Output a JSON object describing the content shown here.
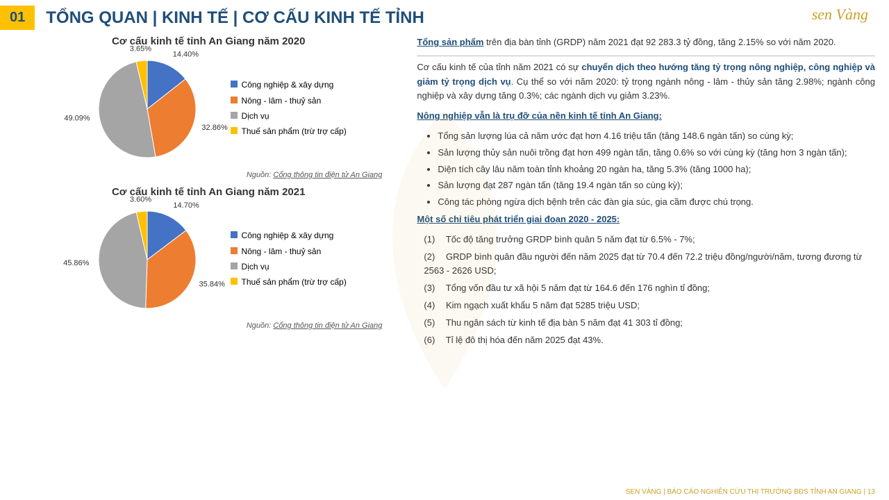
{
  "header": {
    "number": "01",
    "title": "TỔNG QUAN | KINH TẾ | CƠ CẤU KINH TẾ TỈNH",
    "logo": "sen Vàng"
  },
  "chart2020": {
    "title": "Cơ cấu kinh tế tỉnh An Giang năm 2020",
    "type": "pie",
    "slices": [
      {
        "label": "Công nghiệp & xây dựng",
        "value": 14.4,
        "color": "#4472c4",
        "display": "14.40%"
      },
      {
        "label": "Nông - lâm - thuỷ sản",
        "value": 32.86,
        "color": "#ed7d31",
        "display": "32.86%"
      },
      {
        "label": "Dịch vụ",
        "value": 49.09,
        "color": "#a5a5a5",
        "display": "49.09%"
      },
      {
        "label": "Thuế sản phẩm (trừ trợ cấp)",
        "value": 3.65,
        "color": "#ffc000",
        "display": "3.65%"
      }
    ],
    "source_prefix": "Nguồn: ",
    "source_link": "Cổng thông tin điện tử An Giang"
  },
  "chart2021": {
    "title": "Cơ cấu kinh tế tỉnh An Giang năm 2021",
    "type": "pie",
    "slices": [
      {
        "label": "Công nghiệp & xây dựng",
        "value": 14.7,
        "color": "#4472c4",
        "display": "14.70%"
      },
      {
        "label": "Nông - lâm - thuỷ sản",
        "value": 35.84,
        "color": "#ed7d31",
        "display": "35.84%"
      },
      {
        "label": "Dịch vụ",
        "value": 45.86,
        "color": "#a5a5a5",
        "display": "45.86%"
      },
      {
        "label": "Thuế sản phẩm (trừ trợ cấp)",
        "value": 3.6,
        "color": "#ffc000",
        "display": "3.60%"
      }
    ],
    "source_prefix": "Nguồn: ",
    "source_link": "Cổng thông tin điện tử An Giang"
  },
  "text": {
    "p1_lead": "Tổng sản phẩm",
    "p1_rest": " trên địa bàn tỉnh (GRDP) năm 2021 đạt 92 283.3 tỷ đồng, tăng 2.15% so với năm 2020.",
    "p2_pre": "Cơ cấu kinh tế của tỉnh năm 2021 có sự ",
    "p2_bold": "chuyển dịch theo hướng tăng tỷ trọng nông nghiệp, công nghiệp và giảm tỷ trọng dịch vụ",
    "p2_post": ". Cụ thể so với năm 2020: tỷ trọng ngành nông - lâm - thủy sản tăng 2.98%; ngành công nghiệp và xây dựng tăng 0.3%; các ngành dịch vụ giảm 3.23%.",
    "h1": "Nông nghiệp vẫn là trụ đỡ của nền kinh tế tỉnh An Giang:",
    "bullets": [
      "Tổng sản lượng lúa cả năm ước đạt hơn 4.16 triệu tấn (tăng 148.6 ngàn tấn) so cùng kỳ;",
      "Sản lượng thủy sản nuôi trồng đạt hơn 499 ngàn tấn, tăng 0.6% so với cùng kỳ (tăng hơn 3 ngàn tấn);",
      "Diện tích cây lâu năm toàn tỉnh khoảng 20 ngàn ha, tăng 5.3% (tăng 1000 ha);",
      "Sản lượng đạt 287 ngàn tấn (tăng 19.4 ngàn tấn so cùng kỳ);",
      "Công tác phòng ngừa dịch bệnh trên các đàn gia súc, gia cầm được chú trọng."
    ],
    "h2": "Một số chỉ tiêu phát triển giai đoạn 2020 - 2025:",
    "numbered": [
      "Tốc độ tăng trưởng GRDP bình quân 5 năm đạt từ 6.5% - 7%;",
      "GRDP bình quân đầu người đến năm 2025 đạt từ 70.4 đến 72.2 triệu đồng/người/năm, tương đương từ 2563 - 2626 USD;",
      "Tổng vốn đầu tư xã hội 5 năm đạt từ 164.6 đến 176 nghìn tỉ đồng;",
      "Kim ngạch xuất khẩu 5 năm đạt 5285 triệu USD;",
      "Thu ngân sách từ kinh tế địa bàn 5 năm đạt 41 303 tỉ đồng;",
      "Tỉ lệ đô thị hóa đến năm 2025 đạt 43%."
    ]
  },
  "footer": "SEN VÀNG | BÁO CÁO NGHIÊN CỨU THỊ TRƯỜNG BĐS TỈNH AN GIANG | 13"
}
